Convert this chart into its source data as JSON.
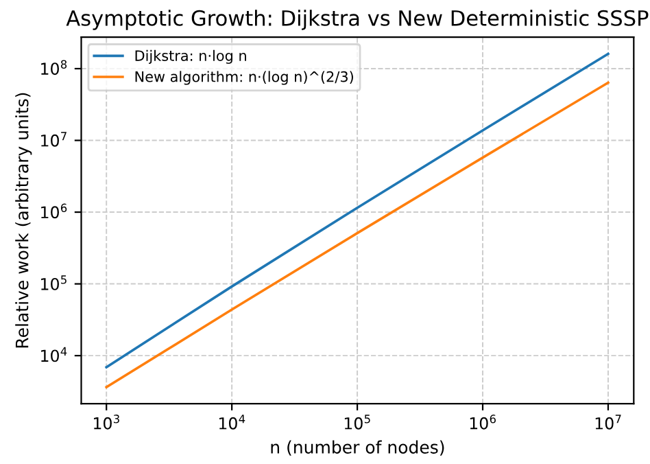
{
  "chart_data": {
    "type": "line",
    "title": "Asymptotic Growth: Dijkstra vs New Deterministic SSSP",
    "xlabel": "n (number of nodes)",
    "ylabel": "Relative work (arbitrary units)",
    "x": [
      1000,
      10000,
      100000,
      1000000,
      10000000
    ],
    "series": [
      {
        "name": "Dijkstra: n·log n",
        "color": "#1f77b4",
        "values": [
          6900,
          92000,
          1150000,
          13800000,
          161000000
        ]
      },
      {
        "name": "New algorithm: n·(log n)^(2/3)",
        "color": "#ff7f0e",
        "values": [
          3630,
          43900,
          510000,
          5760000,
          63800000
        ]
      }
    ],
    "log": "xy",
    "xlim": [
      630,
      16000000
    ],
    "ylim": [
      2140,
      275000000
    ],
    "xticks": [
      {
        "value": 1000,
        "label": "10$^{3}$"
      },
      {
        "value": 10000,
        "label": "10$^{4}$"
      },
      {
        "value": 100000,
        "label": "10$^{5}$"
      },
      {
        "value": 1000000,
        "label": "10$^{6}$"
      },
      {
        "value": 10000000,
        "label": "10$^{7}$"
      }
    ],
    "yticks": [
      {
        "value": 10000,
        "label": "10$^{4}$"
      },
      {
        "value": 100000,
        "label": "10$^{5}$"
      },
      {
        "value": 1000000,
        "label": "10$^{6}$"
      },
      {
        "value": 10000000,
        "label": "10$^{7}$"
      },
      {
        "value": 100000000,
        "label": "10$^{8}$"
      }
    ],
    "grid": true,
    "legend": "top left",
    "marker": "none",
    "line_style": "solid"
  }
}
